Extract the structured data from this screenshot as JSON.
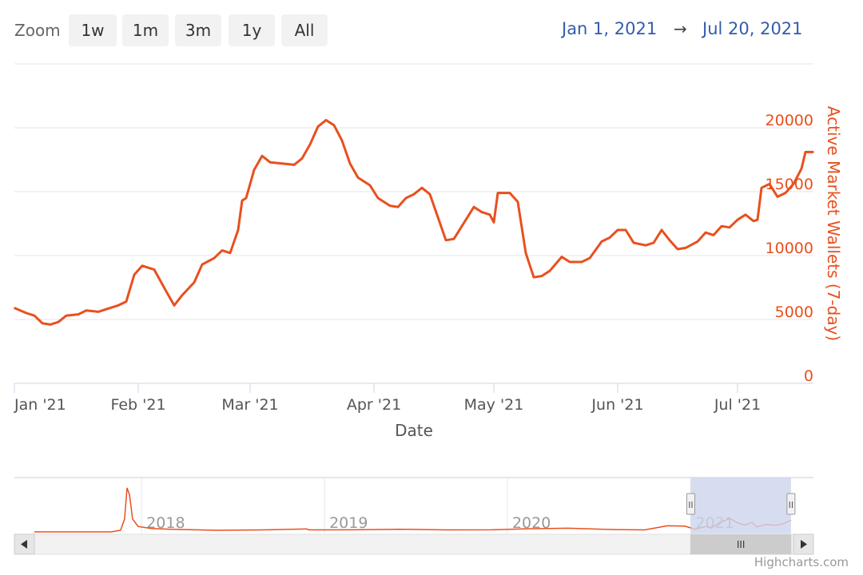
{
  "toolbar": {
    "zoom_label": "Zoom",
    "buttons": [
      "1w",
      "1m",
      "3m",
      "1y",
      "All"
    ],
    "range_from": "Jan 1, 2021",
    "range_arrow": "→",
    "range_to": "Jul 20, 2021"
  },
  "credits": "Highcharts.com",
  "colors": {
    "series": "#e8501e",
    "axis_label": "#e8501e",
    "navigator_mask": "#cdd5ee",
    "range_text": "#335cad"
  },
  "chart_data": {
    "type": "line",
    "title": "",
    "xlabel": "Date",
    "ylabel": "Active Market Wallets (7-day)",
    "ylim": [
      0,
      20000
    ],
    "ytick_labels": [
      "0",
      "5000",
      "10000",
      "15000",
      "20000"
    ],
    "yticks": [
      0,
      5000,
      10000,
      15000,
      20000
    ],
    "xlim": [
      "2021-01-01",
      "2021-07-20"
    ],
    "xtick_labels": [
      "Jan '21",
      "Feb '21",
      "Mar '21",
      "Apr '21",
      "May '21",
      "Jun '21",
      "Jul '21"
    ],
    "xticks": [
      "2021-01-01",
      "2021-02-01",
      "2021-03-01",
      "2021-04-01",
      "2021-05-01",
      "2021-06-01",
      "2021-07-01"
    ],
    "grid": true,
    "series": [
      {
        "name": "",
        "color": "#e8501e",
        "points": [
          [
            "2021-01-01",
            5900
          ],
          [
            "2021-01-04",
            5500
          ],
          [
            "2021-01-06",
            5300
          ],
          [
            "2021-01-08",
            4700
          ],
          [
            "2021-01-10",
            4600
          ],
          [
            "2021-01-12",
            4800
          ],
          [
            "2021-01-14",
            5300
          ],
          [
            "2021-01-17",
            5400
          ],
          [
            "2021-01-19",
            5700
          ],
          [
            "2021-01-22",
            5600
          ],
          [
            "2021-01-25",
            5900
          ],
          [
            "2021-01-27",
            6100
          ],
          [
            "2021-01-29",
            6400
          ],
          [
            "2021-01-31",
            8500
          ],
          [
            "2021-02-02",
            9200
          ],
          [
            "2021-02-05",
            8900
          ],
          [
            "2021-02-08",
            7200
          ],
          [
            "2021-02-10",
            6100
          ],
          [
            "2021-02-12",
            6900
          ],
          [
            "2021-02-15",
            7900
          ],
          [
            "2021-02-17",
            9300
          ],
          [
            "2021-02-20",
            9800
          ],
          [
            "2021-02-22",
            10400
          ],
          [
            "2021-02-24",
            10200
          ],
          [
            "2021-02-26",
            12000
          ],
          [
            "2021-02-27",
            14300
          ],
          [
            "2021-02-28",
            14500
          ],
          [
            "2021-03-02",
            16700
          ],
          [
            "2021-03-04",
            17800
          ],
          [
            "2021-03-06",
            17300
          ],
          [
            "2021-03-09",
            17200
          ],
          [
            "2021-03-12",
            17100
          ],
          [
            "2021-03-14",
            17600
          ],
          [
            "2021-03-16",
            18700
          ],
          [
            "2021-03-18",
            20100
          ],
          [
            "2021-03-20",
            20600
          ],
          [
            "2021-03-22",
            20200
          ],
          [
            "2021-03-24",
            19000
          ],
          [
            "2021-03-26",
            17200
          ],
          [
            "2021-03-28",
            16100
          ],
          [
            "2021-03-31",
            15500
          ],
          [
            "2021-04-02",
            14500
          ],
          [
            "2021-04-05",
            13900
          ],
          [
            "2021-04-07",
            13800
          ],
          [
            "2021-04-09",
            14500
          ],
          [
            "2021-04-11",
            14800
          ],
          [
            "2021-04-13",
            15300
          ],
          [
            "2021-04-15",
            14800
          ],
          [
            "2021-04-17",
            13000
          ],
          [
            "2021-04-19",
            11200
          ],
          [
            "2021-04-21",
            11300
          ],
          [
            "2021-04-24",
            12800
          ],
          [
            "2021-04-26",
            13800
          ],
          [
            "2021-04-28",
            13400
          ],
          [
            "2021-04-30",
            13200
          ],
          [
            "2021-05-01",
            12600
          ],
          [
            "2021-05-02",
            14900
          ],
          [
            "2021-05-05",
            14900
          ],
          [
            "2021-05-07",
            14200
          ],
          [
            "2021-05-09",
            10200
          ],
          [
            "2021-05-11",
            8300
          ],
          [
            "2021-05-13",
            8400
          ],
          [
            "2021-05-15",
            8800
          ],
          [
            "2021-05-18",
            9900
          ],
          [
            "2021-05-20",
            9500
          ],
          [
            "2021-05-23",
            9500
          ],
          [
            "2021-05-25",
            9800
          ],
          [
            "2021-05-28",
            11100
          ],
          [
            "2021-05-30",
            11400
          ],
          [
            "2021-06-01",
            12000
          ],
          [
            "2021-06-03",
            12000
          ],
          [
            "2021-06-05",
            11000
          ],
          [
            "2021-06-08",
            10800
          ],
          [
            "2021-06-10",
            11000
          ],
          [
            "2021-06-12",
            12000
          ],
          [
            "2021-06-14",
            11200
          ],
          [
            "2021-06-16",
            10500
          ],
          [
            "2021-06-18",
            10600
          ],
          [
            "2021-06-21",
            11100
          ],
          [
            "2021-06-23",
            11800
          ],
          [
            "2021-06-25",
            11600
          ],
          [
            "2021-06-27",
            12300
          ],
          [
            "2021-06-29",
            12200
          ],
          [
            "2021-07-01",
            12800
          ],
          [
            "2021-07-03",
            13200
          ],
          [
            "2021-07-05",
            12700
          ],
          [
            "2021-07-06",
            12800
          ],
          [
            "2021-07-07",
            15300
          ],
          [
            "2021-07-09",
            15600
          ],
          [
            "2021-07-11",
            14600
          ],
          [
            "2021-07-13",
            14900
          ],
          [
            "2021-07-15",
            15600
          ],
          [
            "2021-07-17",
            16800
          ],
          [
            "2021-07-18",
            18100
          ],
          [
            "2021-07-20",
            18100
          ]
        ]
      }
    ]
  },
  "navigator": {
    "xlim": [
      "2017-06-01",
      "2021-07-25"
    ],
    "ylim": [
      0,
      80000
    ],
    "tick_labels": [
      "2018",
      "2019",
      "2020",
      "2021"
    ],
    "ticks": [
      "2018-01-01",
      "2019-01-01",
      "2020-01-01",
      "2021-01-01"
    ],
    "selected_range": [
      "2021-01-01",
      "2021-07-20"
    ],
    "handle_label": "II",
    "scrollbar_grip": "III",
    "series_points": [
      [
        "2017-06-01",
        1200
      ],
      [
        "2017-11-01",
        1200
      ],
      [
        "2017-11-20",
        3500
      ],
      [
        "2017-11-28",
        20000
      ],
      [
        "2017-12-03",
        65000
      ],
      [
        "2017-12-08",
        55000
      ],
      [
        "2017-12-14",
        20000
      ],
      [
        "2017-12-25",
        9000
      ],
      [
        "2018-01-20",
        6000
      ],
      [
        "2018-03-01",
        5000
      ],
      [
        "2018-06-01",
        3500
      ],
      [
        "2018-09-01",
        4000
      ],
      [
        "2018-11-26",
        5500
      ],
      [
        "2018-12-01",
        4000
      ],
      [
        "2019-03-01",
        4200
      ],
      [
        "2019-06-01",
        5000
      ],
      [
        "2019-09-01",
        4000
      ],
      [
        "2019-12-01",
        4200
      ],
      [
        "2020-02-01",
        5500
      ],
      [
        "2020-05-01",
        6500
      ],
      [
        "2020-08-01",
        4500
      ],
      [
        "2020-10-01",
        4000
      ],
      [
        "2020-11-15",
        10000
      ],
      [
        "2020-12-20",
        9500
      ],
      [
        "2021-01-10",
        5000
      ],
      [
        "2021-02-01",
        9000
      ],
      [
        "2021-02-10",
        6500
      ],
      [
        "2021-03-01",
        15000
      ],
      [
        "2021-03-20",
        20500
      ],
      [
        "2021-04-05",
        14000
      ],
      [
        "2021-04-20",
        11000
      ],
      [
        "2021-05-03",
        14900
      ],
      [
        "2021-05-12",
        8500
      ],
      [
        "2021-06-01",
        12000
      ],
      [
        "2021-06-20",
        10800
      ],
      [
        "2021-07-05",
        13000
      ],
      [
        "2021-07-20",
        18000
      ]
    ]
  }
}
